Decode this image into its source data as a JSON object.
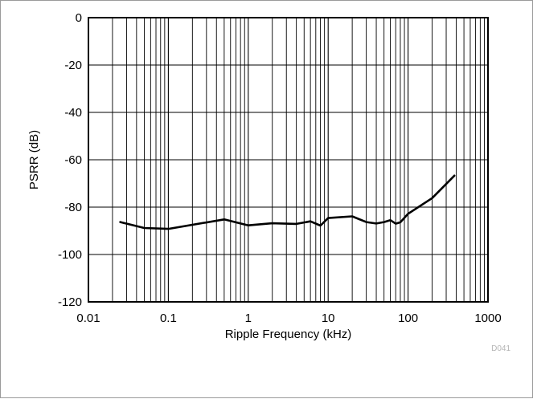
{
  "chart_data": {
    "type": "line",
    "xlabel": "Ripple Frequency (kHz)",
    "ylabel": "PSRR (dB)",
    "x_scale": "log",
    "xlim": [
      0.01,
      1000
    ],
    "ylim": [
      -120,
      0
    ],
    "x_ticks": [
      0.01,
      0.1,
      1,
      10,
      100,
      1000
    ],
    "x_tick_labels": [
      "0.01",
      "0.1",
      "1",
      "10",
      "100",
      "1000"
    ],
    "y_ticks": [
      0,
      -20,
      -40,
      -60,
      -80,
      -100,
      -120
    ],
    "y_tick_labels": [
      "0",
      "-20",
      "-40",
      "-60",
      "-80",
      "-100",
      "-120"
    ],
    "grid": true,
    "series": [
      {
        "color": "#000000",
        "x": [
          0.025,
          0.05,
          0.1,
          0.5,
          1,
          2,
          4,
          6,
          8,
          10,
          20,
          30,
          40,
          50,
          60,
          70,
          80,
          100,
          200,
          380
        ],
        "y": [
          -86.3,
          -88.8,
          -89.2,
          -85.2,
          -87.7,
          -86.8,
          -87.1,
          -86.0,
          -87.8,
          -84.6,
          -83.9,
          -86.3,
          -86.9,
          -86.3,
          -85.5,
          -87.0,
          -86.4,
          -82.8,
          -76.2,
          -66.7
        ]
      }
    ]
  },
  "figure_id": "D041"
}
